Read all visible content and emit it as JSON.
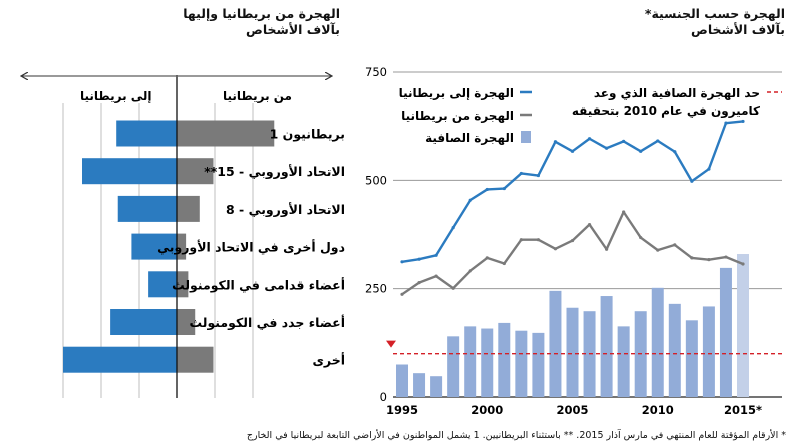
{
  "left_panel": {
    "title": "الهجرة من بريطانيا وإليها",
    "subtitle": "بآلاف الأشخاص",
    "arrow_to_uk": "إلى بريطانيا",
    "arrow_from_uk": "من بريطانيا"
  },
  "right_panel": {
    "title": "الهجرة حسب الجنسية*",
    "subtitle": "بآلاف الأشخاص",
    "target_label_line1": "حد الهجرة الصافية الذي وعد",
    "target_label_line2": "كاميرون في عام 2010 بتحقيقه"
  },
  "footnote": "* الأرقام المؤقتة للعام المنتهي في مارس آذار 2015. ** باستثناء البريطانيين. 1 يشمل المواطنون في الأراضي التابعة لبريطانيا في الخارج",
  "colors": {
    "blue": "#2b7bc0",
    "gray": "#7a7a7a",
    "bar": "#92acd8",
    "bar_provisional": "#c3d0e8",
    "target": "#d42027"
  },
  "chart_data": [
    {
      "type": "bar",
      "orientation": "horizontal-diverging",
      "title": "الهجرة من بريطانيا وإليها",
      "categories": [
        "بريطانيون 1",
        "الاتحاد الأوروبي - 15**",
        "الاتحاد الأوروبي - 8",
        "دول أخرى في الاتحاد الأوروبي",
        "أعضاء قدامى في الكومنولث",
        "أعضاء جدد في الكومنولث",
        "أخرى"
      ],
      "series": [
        {
          "name": "إلى بريطانيا",
          "values": [
            80,
            125,
            78,
            60,
            38,
            88,
            150
          ]
        },
        {
          "name": "من بريطانيا",
          "values": [
            128,
            48,
            30,
            12,
            15,
            24,
            48
          ]
        }
      ]
    },
    {
      "type": "line",
      "title": "الهجرة حسب الجنسية*",
      "x": [
        1995,
        1996,
        1997,
        1998,
        1999,
        2000,
        2001,
        2002,
        2003,
        2004,
        2005,
        2006,
        2007,
        2008,
        2009,
        2010,
        2011,
        2012,
        2013,
        2014,
        2015
      ],
      "x_tick_labels": [
        "1995",
        "2000",
        "2005",
        "2010",
        "2015*"
      ],
      "ylim": [
        0,
        750
      ],
      "y_ticks": [
        0,
        250,
        500,
        750
      ],
      "series": [
        {
          "name": "الهجرة إلى بريطانيا",
          "type": "line",
          "values": [
            312,
            318,
            327,
            391,
            454,
            479,
            481,
            516,
            511,
            589,
            567,
            596,
            574,
            590,
            567,
            591,
            566,
            498,
            526,
            632,
            636
          ]
        },
        {
          "name": "الهجرة من بريطانيا",
          "type": "line",
          "values": [
            237,
            264,
            279,
            251,
            291,
            321,
            308,
            363,
            363,
            342,
            361,
            398,
            341,
            427,
            368,
            339,
            351,
            321,
            317,
            323,
            307
          ]
        },
        {
          "name": "الهجرة الصافية",
          "type": "bar",
          "values": [
            75,
            55,
            48,
            140,
            163,
            158,
            171,
            153,
            148,
            245,
            206,
            198,
            233,
            163,
            198,
            252,
            215,
            177,
            209,
            298,
            330
          ]
        }
      ],
      "target_line": {
        "name": "حد الهجرة الصافية الذي وعد كاميرون في عام 2010 بتحقيقه",
        "value": 100
      }
    }
  ]
}
